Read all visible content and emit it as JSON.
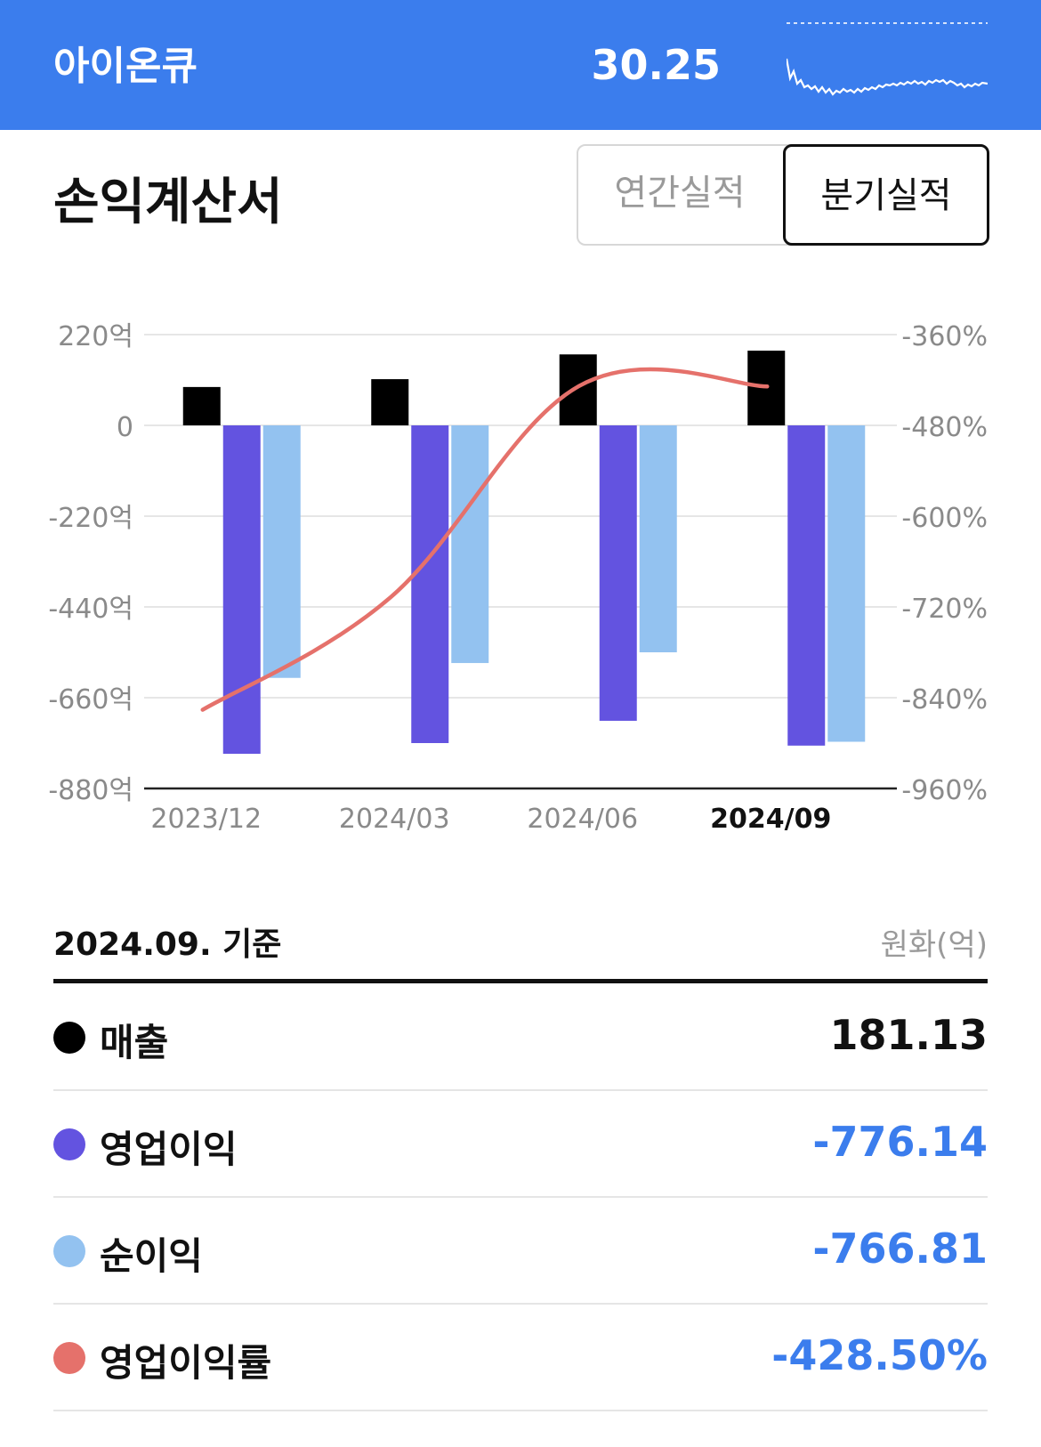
{
  "header": {
    "name": "아이온큐",
    "price": "30.25"
  },
  "section": {
    "title": "손익계산서",
    "tabs": [
      {
        "label": "연간실적"
      },
      {
        "label": "분기실적"
      }
    ]
  },
  "colors": {
    "header_bg": "#3b7ded",
    "revenue": "#000000",
    "operating_income": "#6353e0",
    "net_income": "#93c2f0",
    "operating_margin": "#e5716b",
    "negative_value": "#3b7ded"
  },
  "chart_data": {
    "type": "bar",
    "categories": [
      "2023/12",
      "2024/03",
      "2024/06",
      "2024/09"
    ],
    "series": [
      {
        "name": "매출",
        "values": [
          93,
          112,
          172,
          181.13
        ]
      },
      {
        "name": "영업이익",
        "values": [
          -796,
          -770,
          -716,
          -776.14
        ]
      },
      {
        "name": "순이익",
        "values": [
          -612,
          -576,
          -550,
          -766.81
        ]
      }
    ],
    "line_series": {
      "name": "영업이익률",
      "values": [
        -856,
        -707,
        -428,
        -428.5
      ],
      "axis": "right"
    },
    "y_left": {
      "ticks": [
        "220억",
        "0",
        "-220억",
        "-440억",
        "-660억",
        "-880억"
      ],
      "range": [
        -880,
        220
      ]
    },
    "y_right": {
      "ticks": [
        "-360%",
        "-480%",
        "-600%",
        "-720%",
        "-840%",
        "-960%"
      ],
      "range": [
        -960,
        -360
      ]
    },
    "highlight_category": "2024/09",
    "grid": true
  },
  "summary": {
    "date": "2024.09. 기준",
    "unit": "원화(억)",
    "rows": [
      {
        "label": "매출",
        "value": "181.13"
      },
      {
        "label": "영업이익",
        "value": "-776.14"
      },
      {
        "label": "순이익",
        "value": "-766.81"
      },
      {
        "label": "영업이익률",
        "value": "-428.50%"
      }
    ]
  }
}
